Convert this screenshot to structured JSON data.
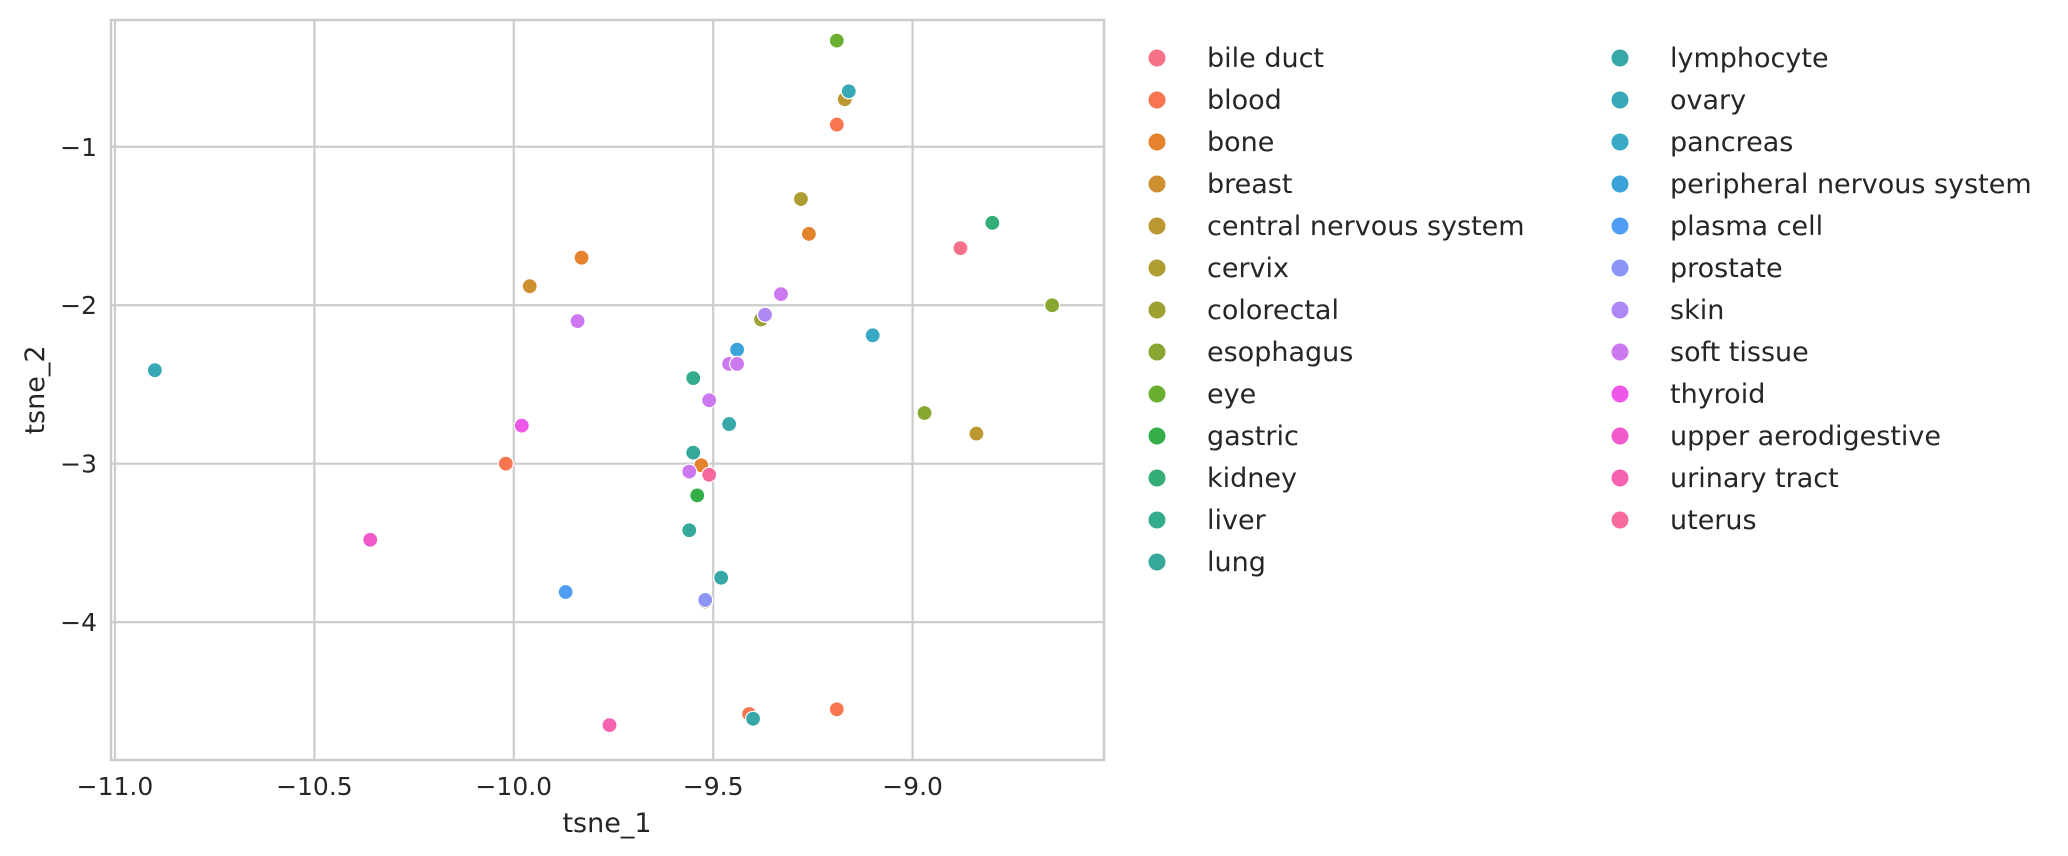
{
  "chart_data": {
    "type": "scatter",
    "xlabel": "tsne_1",
    "ylabel": "tsne_2",
    "xlim": [
      -11.01,
      -8.52
    ],
    "ylim": [
      -4.87,
      -0.2
    ],
    "xticks": [
      -11.0,
      -10.5,
      -10.0,
      -9.5,
      -9.0
    ],
    "xtick_labels": [
      "−11.0",
      "−10.5",
      "−10.0",
      "−9.5",
      "−9.0"
    ],
    "yticks": [
      -4,
      -3,
      -2,
      -1
    ],
    "ytick_labels": [
      "−4",
      "−3",
      "−2",
      "−1"
    ],
    "grid": true,
    "legend_placement": "outside right, two columns",
    "series": [
      {
        "name": "bile duct",
        "color": "#f77189",
        "points": [
          [
            -8.88,
            -1.64
          ]
        ]
      },
      {
        "name": "blood",
        "color": "#f7754f",
        "points": [
          [
            -10.02,
            -3.0
          ],
          [
            -9.19,
            -0.86
          ],
          [
            -9.41,
            -4.58
          ],
          [
            -9.19,
            -4.55
          ]
        ]
      },
      {
        "name": "bone",
        "color": "#e5822e",
        "points": [
          [
            -9.83,
            -1.7
          ],
          [
            -9.26,
            -1.55
          ],
          [
            -9.53,
            -3.01
          ]
        ]
      },
      {
        "name": "breast",
        "color": "#ce8f31",
        "points": [
          [
            -9.96,
            -1.88
          ]
        ]
      },
      {
        "name": "central nervous system",
        "color": "#bb9832",
        "points": [
          [
            -9.17,
            -0.7
          ],
          [
            -8.84,
            -2.81
          ]
        ]
      },
      {
        "name": "cervix",
        "color": "#ae9d31",
        "points": [
          [
            -9.28,
            -1.33
          ],
          [
            -9.52,
            -3.87
          ]
        ]
      },
      {
        "name": "colorectal",
        "color": "#9ea131",
        "points": [
          [
            -9.38,
            -2.09
          ]
        ]
      },
      {
        "name": "esophagus",
        "color": "#88a731",
        "points": [
          [
            -8.97,
            -2.68
          ],
          [
            -8.65,
            -2.0
          ]
        ]
      },
      {
        "name": "eye",
        "color": "#6aaf2f",
        "points": [
          [
            -9.19,
            -0.33
          ]
        ]
      },
      {
        "name": "gastric",
        "color": "#34af48",
        "points": [
          [
            -9.54,
            -3.2
          ]
        ]
      },
      {
        "name": "kidney",
        "color": "#34ad77",
        "points": [
          [
            -8.8,
            -1.48
          ]
        ]
      },
      {
        "name": "liver",
        "color": "#35ab8d",
        "points": [
          [
            -9.55,
            -2.46
          ]
        ]
      },
      {
        "name": "lung",
        "color": "#36a99c",
        "points": [
          [
            -9.55,
            -2.93
          ],
          [
            -9.56,
            -3.42
          ]
        ]
      },
      {
        "name": "lymphocyte",
        "color": "#37a7a7",
        "points": [
          [
            -9.46,
            -2.75
          ],
          [
            -9.48,
            -3.72
          ],
          [
            -9.4,
            -4.61
          ]
        ]
      },
      {
        "name": "ovary",
        "color": "#38a8b6",
        "points": [
          [
            -10.9,
            -2.41
          ],
          [
            -9.16,
            -0.65
          ]
        ]
      },
      {
        "name": "pancreas",
        "color": "#3aa9c5",
        "points": [
          [
            -9.1,
            -2.19
          ]
        ]
      },
      {
        "name": "peripheral nervous system",
        "color": "#3ba3d9",
        "points": [
          [
            -9.44,
            -2.28
          ]
        ]
      },
      {
        "name": "plasma cell",
        "color": "#4f9ef3",
        "points": [
          [
            -9.87,
            -3.81
          ]
        ]
      },
      {
        "name": "prostate",
        "color": "#8d95f4",
        "points": [
          [
            -9.52,
            -3.86
          ]
        ]
      },
      {
        "name": "skin",
        "color": "#ad88f4",
        "points": [
          [
            -9.37,
            -2.06
          ]
        ]
      },
      {
        "name": "soft tissue",
        "color": "#cc79f1",
        "points": [
          [
            -9.84,
            -2.1
          ],
          [
            -9.33,
            -1.93
          ],
          [
            -9.46,
            -2.37
          ],
          [
            -9.44,
            -2.37
          ],
          [
            -9.51,
            -2.6
          ],
          [
            -9.56,
            -3.05
          ]
        ]
      },
      {
        "name": "thyroid",
        "color": "#ee58e8",
        "points": [
          [
            -9.98,
            -2.76
          ]
        ]
      },
      {
        "name": "upper aerodigestive",
        "color": "#f15bc9",
        "points": [
          [
            -10.36,
            -3.48
          ]
        ]
      },
      {
        "name": "urinary tract",
        "color": "#f462b1",
        "points": [
          [
            -9.76,
            -4.65
          ]
        ]
      },
      {
        "name": "uterus",
        "color": "#f5699f",
        "points": [
          [
            -9.51,
            -3.07
          ]
        ]
      }
    ]
  }
}
